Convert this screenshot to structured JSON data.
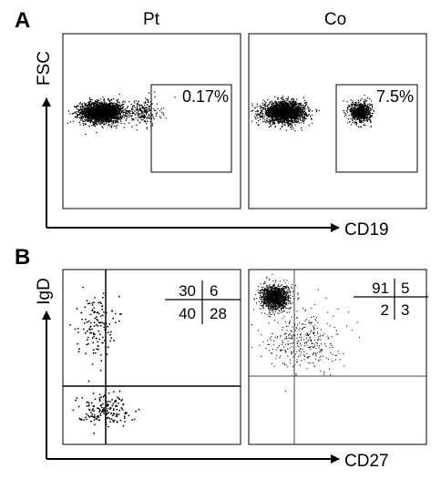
{
  "figure": {
    "panel_a_label": "A",
    "panel_b_label": "B"
  },
  "colors": {
    "ink": "#000000",
    "background": "#ffffff"
  },
  "chart_data": [
    {
      "panel": "A",
      "type": "scatter",
      "title": "Pt",
      "xlabel": "CD19",
      "ylabel": "FSC",
      "gate_percent": "0.17%",
      "clusters": [
        {
          "x_center": 0.22,
          "y_center": 0.55,
          "x_spread": 0.12,
          "y_spread": 0.06,
          "relative_density": "very high"
        },
        {
          "x_center": 0.45,
          "y_center": 0.55,
          "x_spread": 0.1,
          "y_spread": 0.08,
          "relative_density": "low"
        }
      ],
      "gate": {
        "x_range": [
          0.52,
          0.85
        ],
        "y_range": [
          0.35,
          0.85
        ]
      },
      "xlim": [
        0,
        1
      ],
      "ylim": [
        0,
        1
      ],
      "grid": false,
      "legend": "none"
    },
    {
      "panel": "A",
      "type": "scatter",
      "title": "Co",
      "xlabel": "CD19",
      "ylabel": "FSC",
      "gate_percent": "7.5%",
      "clusters": [
        {
          "x_center": 0.2,
          "y_center": 0.55,
          "x_spread": 0.12,
          "y_spread": 0.06,
          "relative_density": "very high"
        },
        {
          "x_center": 0.63,
          "y_center": 0.55,
          "x_spread": 0.06,
          "y_spread": 0.06,
          "relative_density": "medium"
        }
      ],
      "gate": {
        "x_range": [
          0.52,
          0.85
        ],
        "y_range": [
          0.35,
          0.85
        ]
      },
      "xlim": [
        0,
        1
      ],
      "ylim": [
        0,
        1
      ],
      "grid": false,
      "legend": "none"
    },
    {
      "panel": "B",
      "type": "scatter",
      "title": "",
      "xlabel": "CD27",
      "ylabel": "IgD",
      "quadrants": {
        "top_left": 30,
        "top_right": 6,
        "bottom_left": 40,
        "bottom_right": 28
      },
      "quadrant_labels": [
        "30",
        "6",
        "40",
        "28"
      ],
      "quadrant_divider": {
        "x": 0.24,
        "y": 0.34
      },
      "clusters": [
        {
          "x_center": 0.18,
          "y_center": 0.68,
          "x_spread": 0.1,
          "y_spread": 0.18,
          "relative_density": "sparse"
        },
        {
          "x_center": 0.23,
          "y_center": 0.2,
          "x_spread": 0.15,
          "y_spread": 0.09,
          "relative_density": "sparse"
        }
      ],
      "xlim": [
        0,
        1
      ],
      "ylim": [
        0,
        1
      ],
      "grid": false,
      "legend": "none"
    },
    {
      "panel": "B",
      "type": "scatter",
      "title": "",
      "xlabel": "CD27",
      "ylabel": "IgD",
      "quadrants": {
        "top_left": 91,
        "top_right": 5,
        "bottom_left": 2,
        "bottom_right": 3
      },
      "quadrant_labels": [
        "91",
        "5",
        "2",
        "3"
      ],
      "quadrant_divider": {
        "x": 0.25,
        "y": 0.37
      },
      "clusters": [
        {
          "x_center": 0.15,
          "y_center": 0.84,
          "x_spread": 0.08,
          "y_spread": 0.07,
          "relative_density": "very high"
        },
        {
          "x_center": 0.3,
          "y_center": 0.6,
          "x_spread": 0.2,
          "y_spread": 0.18,
          "relative_density": "low"
        }
      ],
      "xlim": [
        0,
        1
      ],
      "ylim": [
        0,
        1
      ],
      "grid": false,
      "legend": "none"
    }
  ]
}
